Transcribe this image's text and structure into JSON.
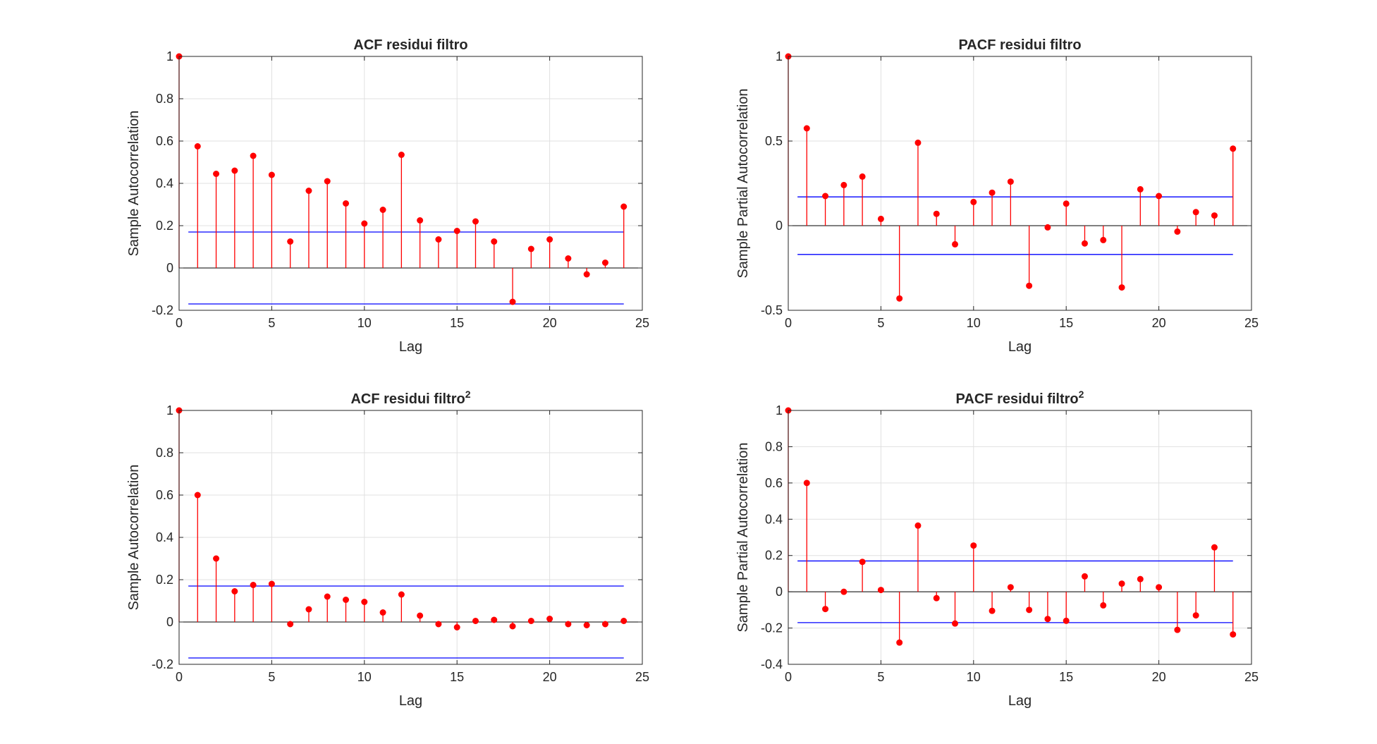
{
  "window": {
    "background": "#ffffff"
  },
  "colors": {
    "stem": "#ff0000",
    "bound": "#0000ff",
    "zero": "#000000",
    "grid": "#e0e0e0",
    "axis": "#262626"
  },
  "chart_data": [
    {
      "type": "stem",
      "title": "ACF residui filtro",
      "title_sup": "",
      "xlabel": "Lag",
      "ylabel": "Sample Autocorrelation",
      "xlim": [
        0,
        25
      ],
      "ylim": [
        -0.2,
        1
      ],
      "xticks": [
        0,
        5,
        10,
        15,
        20,
        25
      ],
      "xtick_labels": [
        "0",
        "5",
        "10",
        "15",
        "20",
        "25"
      ],
      "yticks": [
        -0.2,
        0,
        0.2,
        0.4,
        0.6,
        0.8,
        1
      ],
      "ytick_labels": [
        "-0.2",
        "0",
        "0.2",
        "0.4",
        "0.6",
        "0.8",
        "1"
      ],
      "grid": true,
      "bounds": [
        0.17,
        -0.17
      ],
      "x": [
        0,
        1,
        2,
        3,
        4,
        5,
        6,
        7,
        8,
        9,
        10,
        11,
        12,
        13,
        14,
        15,
        16,
        17,
        18,
        19,
        20,
        21,
        22,
        23,
        24
      ],
      "values": [
        1,
        0.575,
        0.445,
        0.46,
        0.53,
        0.44,
        0.125,
        0.365,
        0.41,
        0.305,
        0.21,
        0.275,
        0.535,
        0.225,
        0.135,
        0.175,
        0.22,
        0.125,
        -0.16,
        0.09,
        0.135,
        0.045,
        -0.03,
        0.025,
        0.29
      ]
    },
    {
      "type": "stem",
      "title": "PACF residui filtro",
      "title_sup": "",
      "xlabel": "Lag",
      "ylabel": "Sample Partial Autocorrelation",
      "xlim": [
        0,
        25
      ],
      "ylim": [
        -0.5,
        1
      ],
      "xticks": [
        0,
        5,
        10,
        15,
        20,
        25
      ],
      "xtick_labels": [
        "0",
        "5",
        "10",
        "15",
        "20",
        "25"
      ],
      "yticks": [
        -0.5,
        0,
        0.5,
        1
      ],
      "ytick_labels": [
        "-0.5",
        "0",
        "0.5",
        "1"
      ],
      "grid": true,
      "bounds": [
        0.17,
        -0.17
      ],
      "x": [
        0,
        1,
        2,
        3,
        4,
        5,
        6,
        7,
        8,
        9,
        10,
        11,
        12,
        13,
        14,
        15,
        16,
        17,
        18,
        19,
        20,
        21,
        22,
        23,
        24
      ],
      "values": [
        1,
        0.575,
        0.175,
        0.24,
        0.29,
        0.04,
        -0.43,
        0.49,
        0.07,
        -0.11,
        0.14,
        0.195,
        0.26,
        -0.355,
        -0.01,
        0.13,
        -0.105,
        -0.085,
        -0.365,
        0.215,
        0.175,
        -0.035,
        0.08,
        0.06,
        0.455
      ]
    },
    {
      "type": "stem",
      "title": "ACF residui filtro",
      "title_sup": "2",
      "xlabel": "Lag",
      "ylabel": "Sample Autocorrelation",
      "xlim": [
        0,
        25
      ],
      "ylim": [
        -0.2,
        1
      ],
      "xticks": [
        0,
        5,
        10,
        15,
        20,
        25
      ],
      "xtick_labels": [
        "0",
        "5",
        "10",
        "15",
        "20",
        "25"
      ],
      "yticks": [
        -0.2,
        0,
        0.2,
        0.4,
        0.6,
        0.8,
        1
      ],
      "ytick_labels": [
        "-0.2",
        "0",
        "0.2",
        "0.4",
        "0.6",
        "0.8",
        "1"
      ],
      "grid": true,
      "bounds": [
        0.17,
        -0.17
      ],
      "x": [
        0,
        1,
        2,
        3,
        4,
        5,
        6,
        7,
        8,
        9,
        10,
        11,
        12,
        13,
        14,
        15,
        16,
        17,
        18,
        19,
        20,
        21,
        22,
        23,
        24
      ],
      "values": [
        1,
        0.6,
        0.3,
        0.145,
        0.175,
        0.18,
        -0.01,
        0.06,
        0.12,
        0.105,
        0.095,
        0.045,
        0.13,
        0.03,
        -0.01,
        -0.025,
        0.005,
        0.01,
        -0.02,
        0.005,
        0.015,
        -0.01,
        -0.015,
        -0.01,
        0.005
      ]
    },
    {
      "type": "stem",
      "title": "PACF residui filtro",
      "title_sup": "2",
      "xlabel": "Lag",
      "ylabel": "Sample Partial Autocorrelation",
      "xlim": [
        0,
        25
      ],
      "ylim": [
        -0.4,
        1
      ],
      "xticks": [
        0,
        5,
        10,
        15,
        20,
        25
      ],
      "xtick_labels": [
        "0",
        "5",
        "10",
        "15",
        "20",
        "25"
      ],
      "yticks": [
        -0.4,
        -0.2,
        0,
        0.2,
        0.4,
        0.6,
        0.8,
        1
      ],
      "ytick_labels": [
        "-0.4",
        "-0.2",
        "0",
        "0.2",
        "0.4",
        "0.6",
        "0.8",
        "1"
      ],
      "grid": true,
      "bounds": [
        0.17,
        -0.17
      ],
      "x": [
        0,
        1,
        2,
        3,
        4,
        5,
        6,
        7,
        8,
        9,
        10,
        11,
        12,
        13,
        14,
        15,
        16,
        17,
        18,
        19,
        20,
        21,
        22,
        23,
        24
      ],
      "values": [
        1,
        0.6,
        -0.095,
        0.0,
        0.165,
        0.01,
        -0.28,
        0.365,
        -0.035,
        -0.175,
        0.255,
        -0.105,
        0.025,
        -0.1,
        -0.15,
        -0.16,
        0.085,
        -0.075,
        0.045,
        0.07,
        0.025,
        -0.21,
        -0.13,
        0.245,
        -0.235
      ]
    }
  ]
}
